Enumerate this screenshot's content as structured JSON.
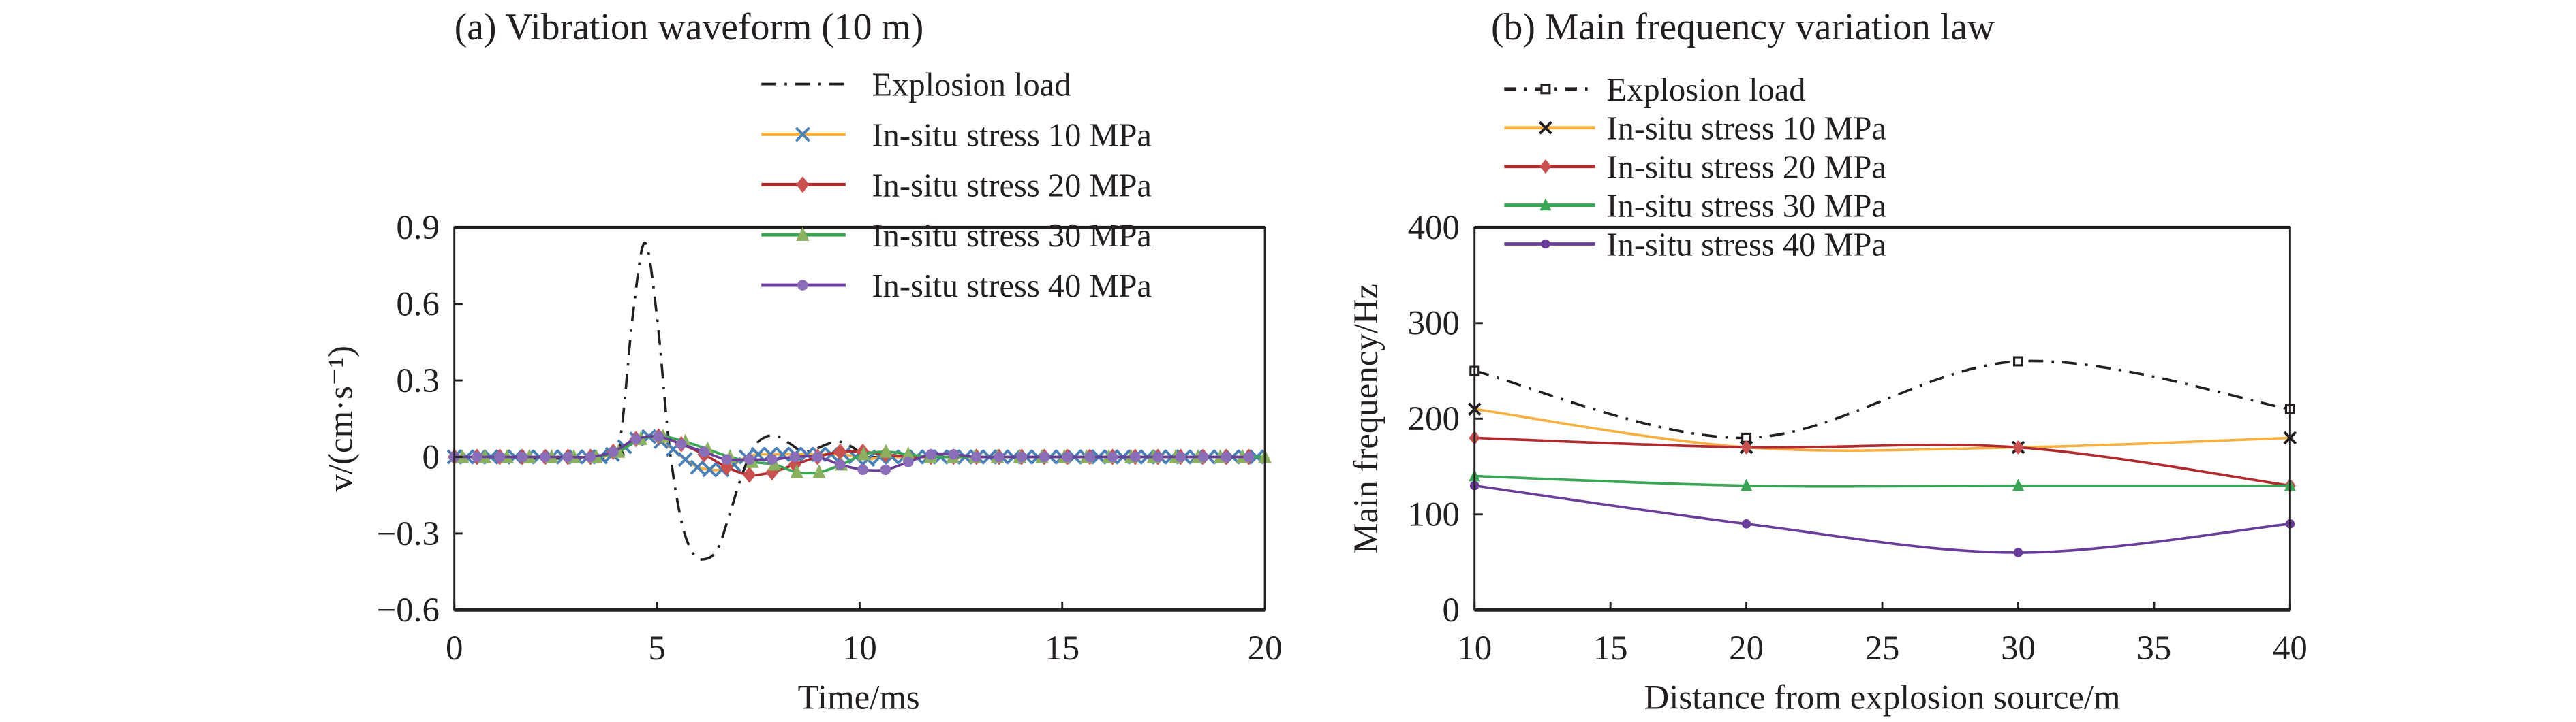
{
  "chart_data": [
    {
      "type": "line",
      "title": "(a) Vibration waveform (10 m)",
      "xlabel": "Time/ms",
      "ylabel": "v/(cm·s⁻¹)",
      "xlim": [
        0,
        20
      ],
      "ylim": [
        -0.6,
        0.9
      ],
      "xticks": [
        0,
        5,
        10,
        15,
        20
      ],
      "xtick_labels": [
        "0",
        "5",
        "10",
        "15",
        "20"
      ],
      "yticks": [
        -0.6,
        -0.3,
        0,
        0.3,
        0.6,
        0.9
      ],
      "ytick_labels": [
        "−0.6",
        "−0.3",
        "0",
        "0.3",
        "0.6",
        "0.9"
      ],
      "grid": false,
      "legend_position": "top-right",
      "series": [
        {
          "name": "Explosion load",
          "color": "#231f20",
          "style": "dashdot",
          "marker": "none",
          "x": [
            0,
            3.8,
            4.1,
            4.4,
            4.7,
            5.0,
            5.3,
            5.6,
            5.9,
            6.2,
            6.5,
            6.8,
            7.1,
            7.4,
            7.7,
            8.0,
            8.3,
            8.6,
            8.9,
            9.2,
            9.5,
            9.8,
            10.1,
            10.5,
            11,
            20
          ],
          "y": [
            0,
            0,
            0.08,
            0.55,
            0.84,
            0.55,
            0.05,
            -0.25,
            -0.38,
            -0.4,
            -0.36,
            -0.22,
            -0.07,
            0.04,
            0.08,
            0.08,
            0.05,
            0.02,
            0.03,
            0.05,
            0.06,
            0.04,
            0.01,
            0,
            0,
            0
          ]
        },
        {
          "name": "In-situ stress 10 MPa",
          "color": "#f5b041",
          "marker_color": "#4a7fb5",
          "marker": "x",
          "x": [
            0,
            0.3,
            0.6,
            0.9,
            1.2,
            1.5,
            1.8,
            2.1,
            2.4,
            2.7,
            3.0,
            3.3,
            3.6,
            3.9,
            4.2,
            4.5,
            4.8,
            5.1,
            5.4,
            5.7,
            6.0,
            6.3,
            6.6,
            6.9,
            7.2,
            7.5,
            7.8,
            8.1,
            8.4,
            8.7,
            9.0,
            9.3,
            9.6,
            9.9,
            10.2,
            10.5,
            10.8,
            11.1,
            11.4,
            11.7,
            12.0,
            12.3,
            12.6,
            12.9,
            13.2,
            13.5,
            13.8,
            14.1,
            14.4,
            14.7,
            15.0,
            15.3,
            15.6,
            15.9,
            16.2,
            16.5,
            16.8,
            17.1,
            17.4,
            17.7,
            18.0,
            18.3,
            18.6,
            18.9,
            19.2,
            19.5,
            19.8
          ],
          "y": [
            0,
            0,
            0,
            0,
            0,
            0,
            0,
            0,
            0,
            0,
            0,
            0,
            0,
            0.01,
            0.04,
            0.07,
            0.08,
            0.06,
            0.03,
            -0.01,
            -0.04,
            -0.05,
            -0.05,
            -0.03,
            0,
            0.01,
            0.01,
            0.01,
            0.01,
            0.01,
            0.01,
            0.01,
            0.01,
            0,
            -0.01,
            0,
            0,
            0,
            0,
            0,
            0,
            0,
            0,
            0,
            0,
            0,
            0,
            0,
            0,
            0,
            0,
            0,
            0,
            0,
            0,
            0,
            0,
            0,
            0,
            0,
            0,
            0,
            0,
            0,
            0,
            0,
            0
          ]
        },
        {
          "name": "In-situ stress 20 MPa",
          "color": "#b22a2e",
          "marker_color": "#c9514f",
          "marker": "diamond",
          "x": [
            0,
            0.56,
            1.12,
            1.68,
            2.24,
            2.8,
            3.36,
            3.92,
            4.48,
            5.04,
            5.6,
            6.16,
            6.72,
            7.28,
            7.84,
            8.4,
            8.96,
            9.52,
            10.08,
            10.64,
            11.2,
            11.76,
            12.32,
            12.88,
            13.44,
            14.0,
            14.56,
            15.12,
            15.68,
            16.24,
            16.8,
            17.36,
            17.92,
            18.48,
            19.04,
            19.6
          ],
          "y": [
            0,
            0,
            0,
            0,
            0,
            0,
            0,
            0.02,
            0.07,
            0.08,
            0.05,
            0.01,
            -0.04,
            -0.07,
            -0.06,
            -0.03,
            0,
            0.02,
            0.02,
            0.01,
            0,
            0,
            0,
            0,
            0,
            0,
            0,
            0,
            0,
            0,
            0,
            0,
            0,
            0,
            0,
            0
          ]
        },
        {
          "name": "In-situ stress 30 MPa",
          "color": "#3aa655",
          "marker_color": "#8bb060",
          "marker": "triangle",
          "x": [
            0.2,
            0.75,
            1.3,
            1.85,
            2.4,
            2.95,
            3.5,
            4.05,
            4.6,
            5.15,
            5.7,
            6.25,
            6.8,
            7.35,
            7.9,
            8.45,
            9.0,
            9.55,
            10.1,
            10.65,
            11.2,
            11.75,
            12.3,
            12.85,
            13.4,
            13.95,
            14.5,
            15.05,
            15.6,
            16.15,
            16.7,
            17.25,
            17.8,
            18.35,
            18.9,
            19.45,
            20.0
          ],
          "y": [
            0,
            0,
            0,
            0,
            0,
            0,
            0,
            0.02,
            0.07,
            0.08,
            0.06,
            0.03,
            0,
            -0.02,
            -0.03,
            -0.06,
            -0.06,
            -0.03,
            0.01,
            0.02,
            0.01,
            0,
            0,
            0,
            0,
            0,
            0,
            0,
            0,
            0,
            0,
            0,
            0,
            0,
            0,
            0,
            0
          ]
        },
        {
          "name": "In-situ stress 40 MPa",
          "color": "#6a3d9a",
          "marker_color": "#8a6fb8",
          "marker": "circle",
          "x": [
            0,
            0.56,
            1.12,
            1.68,
            2.24,
            2.8,
            3.36,
            3.92,
            4.48,
            5.04,
            5.6,
            6.16,
            6.72,
            7.28,
            7.84,
            8.4,
            8.96,
            9.52,
            10.08,
            10.64,
            11.2,
            11.76,
            12.32,
            12.88,
            13.44,
            14.0,
            14.56,
            15.12,
            15.68,
            16.24,
            16.8,
            17.36,
            17.92,
            18.48,
            19.04,
            19.6
          ],
          "y": [
            0,
            0,
            0,
            0,
            0,
            0,
            0,
            0.02,
            0.07,
            0.08,
            0.05,
            0.02,
            -0.01,
            -0.01,
            -0.01,
            0,
            0,
            -0.03,
            -0.05,
            -0.05,
            -0.02,
            0.01,
            0.01,
            0,
            0,
            0,
            0,
            0,
            0,
            0,
            0,
            0,
            0,
            0,
            0,
            0
          ]
        }
      ]
    },
    {
      "type": "line",
      "title": "(b) Main frequency variation law",
      "xlabel": "Distance from explosion source/m",
      "ylabel": "Main frequency/Hz",
      "xlim": [
        10,
        40
      ],
      "ylim": [
        0,
        400
      ],
      "xticks": [
        10,
        15,
        20,
        25,
        30,
        35,
        40
      ],
      "xtick_labels": [
        "10",
        "15",
        "20",
        "25",
        "30",
        "35",
        "40"
      ],
      "yticks": [
        0,
        100,
        200,
        300,
        400
      ],
      "ytick_labels": [
        "0",
        "100",
        "200",
        "300",
        "400"
      ],
      "grid": false,
      "legend_position": "top-left",
      "x": [
        10,
        20,
        30,
        40
      ],
      "series": [
        {
          "name": "Explosion load",
          "color": "#231f20",
          "marker_color": "#231f20",
          "style": "dashdot",
          "marker": "square",
          "values": [
            250,
            180,
            260,
            210
          ]
        },
        {
          "name": "In-situ stress 10 MPa",
          "color": "#f5b041",
          "marker_color": "#231f20",
          "marker": "x",
          "values": [
            210,
            170,
            170,
            180
          ]
        },
        {
          "name": "In-situ stress 20 MPa",
          "color": "#b22a2e",
          "marker_color": "#c9514f",
          "marker": "diamond",
          "values": [
            180,
            170,
            170,
            130
          ]
        },
        {
          "name": "In-situ stress 30 MPa",
          "color": "#3aa655",
          "marker_color": "#3aa655",
          "marker": "triangle",
          "values": [
            140,
            130,
            130,
            130
          ]
        },
        {
          "name": "In-situ stress 40 MPa",
          "color": "#6a3d9a",
          "marker_color": "#6a3d9a",
          "marker": "circle",
          "values": [
            130,
            90,
            60,
            90
          ]
        }
      ]
    }
  ]
}
